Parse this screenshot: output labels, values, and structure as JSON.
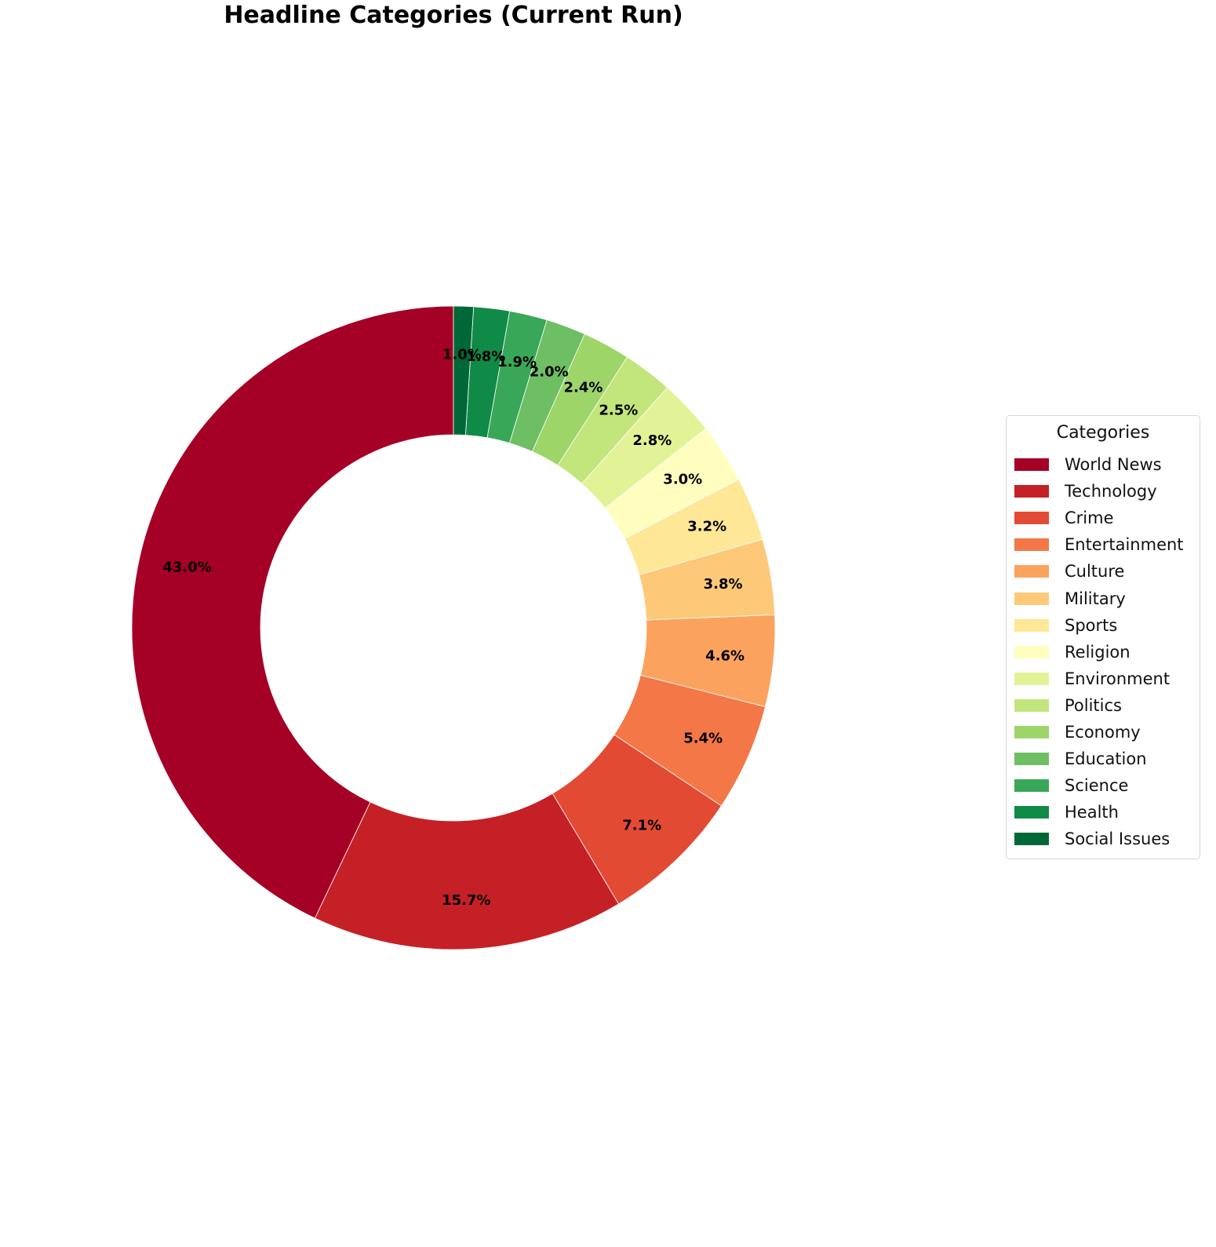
{
  "chart_data": {
    "type": "pie",
    "title": "Headline Categories (Current Run)",
    "donut": true,
    "start_angle_deg": 90,
    "direction": "clockwise",
    "legend": {
      "title": "Categories",
      "placement": "right"
    },
    "slices": [
      {
        "label": "World News",
        "value": 43.0,
        "display": "43.0%",
        "color": "#a50026"
      },
      {
        "label": "Technology",
        "value": 15.7,
        "display": "15.7%",
        "color": "#c62027"
      },
      {
        "label": "Crime",
        "value": 7.1,
        "display": "7.1%",
        "color": "#e34a33"
      },
      {
        "label": "Entertainment",
        "value": 5.4,
        "display": "5.4%",
        "color": "#f47747"
      },
      {
        "label": "Culture",
        "value": 4.6,
        "display": "4.6%",
        "color": "#fba35e"
      },
      {
        "label": "Military",
        "value": 3.8,
        "display": "3.8%",
        "color": "#fdc979"
      },
      {
        "label": "Sports",
        "value": 3.2,
        "display": "3.2%",
        "color": "#fee797"
      },
      {
        "label": "Religion",
        "value": 3.0,
        "display": "3.0%",
        "color": "#fffebe"
      },
      {
        "label": "Environment",
        "value": 2.8,
        "display": "2.8%",
        "color": "#e2f397"
      },
      {
        "label": "Politics",
        "value": 2.5,
        "display": "2.5%",
        "color": "#c2e57c"
      },
      {
        "label": "Economy",
        "value": 2.4,
        "display": "2.4%",
        "color": "#9dd569"
      },
      {
        "label": "Education",
        "value": 2.0,
        "display": "2.0%",
        "color": "#6ebe63"
      },
      {
        "label": "Science",
        "value": 1.9,
        "display": "1.9%",
        "color": "#39a758"
      },
      {
        "label": "Health",
        "value": 1.8,
        "display": "1.8%",
        "color": "#108a47"
      },
      {
        "label": "Social Issues",
        "value": 1.0,
        "display": "1.0%",
        "color": "#006837"
      }
    ]
  }
}
